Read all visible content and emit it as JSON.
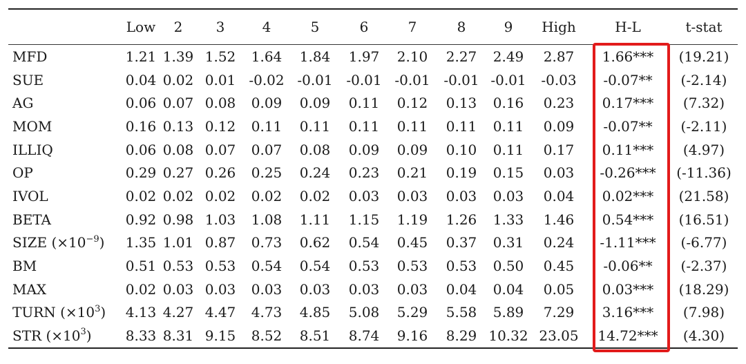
{
  "table": {
    "columns": [
      "",
      "Low",
      "2",
      "3",
      "4",
      "5",
      "6",
      "7",
      "8",
      "9",
      "High",
      "H-L",
      "t-stat"
    ],
    "rows": [
      {
        "label": "MFD",
        "label_sup": "",
        "label_tail": "",
        "cells": [
          "1.21",
          "1.39",
          "1.52",
          "1.64",
          "1.84",
          "1.97",
          "2.10",
          "2.27",
          "2.49",
          "2.87",
          "1.66***",
          "(19.21)"
        ]
      },
      {
        "label": "SUE",
        "label_sup": "",
        "label_tail": "",
        "cells": [
          "0.04",
          "0.02",
          "0.01",
          "-0.02",
          "-0.01",
          "-0.01",
          "-0.01",
          "-0.01",
          "-0.01",
          "-0.03",
          "-0.07**",
          "(-2.14)"
        ]
      },
      {
        "label": "AG",
        "label_sup": "",
        "label_tail": "",
        "cells": [
          "0.06",
          "0.07",
          "0.08",
          "0.09",
          "0.09",
          "0.11",
          "0.12",
          "0.13",
          "0.16",
          "0.23",
          "0.17***",
          "(7.32)"
        ]
      },
      {
        "label": "MOM",
        "label_sup": "",
        "label_tail": "",
        "cells": [
          "0.16",
          "0.13",
          "0.12",
          "0.11",
          "0.11",
          "0.11",
          "0.11",
          "0.11",
          "0.11",
          "0.09",
          "-0.07**",
          "(-2.11)"
        ]
      },
      {
        "label": "ILLIQ",
        "label_sup": "",
        "label_tail": "",
        "cells": [
          "0.06",
          "0.08",
          "0.07",
          "0.07",
          "0.08",
          "0.09",
          "0.09",
          "0.10",
          "0.11",
          "0.17",
          "0.11***",
          "(4.97)"
        ]
      },
      {
        "label": "OP",
        "label_sup": "",
        "label_tail": "",
        "cells": [
          "0.29",
          "0.27",
          "0.26",
          "0.25",
          "0.24",
          "0.23",
          "0.21",
          "0.19",
          "0.15",
          "0.03",
          "-0.26***",
          "(-11.36)"
        ]
      },
      {
        "label": "IVOL",
        "label_sup": "",
        "label_tail": "",
        "cells": [
          "0.02",
          "0.02",
          "0.02",
          "0.02",
          "0.02",
          "0.03",
          "0.03",
          "0.03",
          "0.03",
          "0.04",
          "0.02***",
          "(21.58)"
        ]
      },
      {
        "label": "BETA",
        "label_sup": "",
        "label_tail": "",
        "cells": [
          "0.92",
          "0.98",
          "1.03",
          "1.08",
          "1.11",
          "1.15",
          "1.19",
          "1.26",
          "1.33",
          "1.46",
          "0.54***",
          "(16.51)"
        ]
      },
      {
        "label": "SIZE (×10",
        "label_sup": "−9",
        "label_tail": ")",
        "cells": [
          "1.35",
          "1.01",
          "0.87",
          "0.73",
          "0.62",
          "0.54",
          "0.45",
          "0.37",
          "0.31",
          "0.24",
          "-1.11***",
          "(-6.77)"
        ]
      },
      {
        "label": "BM",
        "label_sup": "",
        "label_tail": "",
        "cells": [
          "0.51",
          "0.53",
          "0.53",
          "0.54",
          "0.54",
          "0.53",
          "0.53",
          "0.53",
          "0.50",
          "0.45",
          "-0.06**",
          "(-2.37)"
        ]
      },
      {
        "label": "MAX",
        "label_sup": "",
        "label_tail": "",
        "cells": [
          "0.02",
          "0.03",
          "0.03",
          "0.03",
          "0.03",
          "0.03",
          "0.03",
          "0.04",
          "0.04",
          "0.05",
          "0.03***",
          "(18.29)"
        ]
      },
      {
        "label": "TURN (×10",
        "label_sup": "3",
        "label_tail": ")",
        "cells": [
          "4.13",
          "4.27",
          "4.47",
          "4.73",
          "4.85",
          "5.08",
          "5.29",
          "5.58",
          "5.89",
          "7.29",
          "3.16***",
          "(7.98)"
        ]
      },
      {
        "label": "STR (×10",
        "label_sup": "3",
        "label_tail": ")",
        "cells": [
          "8.33",
          "8.31",
          "9.15",
          "8.52",
          "8.51",
          "8.74",
          "9.16",
          "8.29",
          "10.32",
          "23.05",
          "14.72***",
          "(4.30)"
        ]
      }
    ]
  },
  "colors": {
    "highlight_box": "#e21b1b",
    "text": "#1a1a1a",
    "rules": "#222222"
  }
}
